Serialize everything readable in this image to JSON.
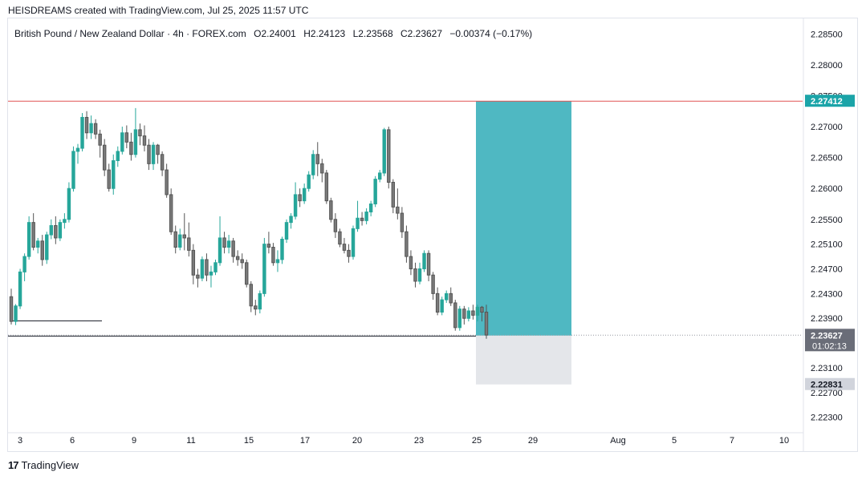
{
  "header": {
    "caption": "HEISDREAMS created with TradingView.com, Jul 25, 2025 11:57 UTC"
  },
  "legend": {
    "symbol": "British Pound / New Zealand Dollar · 4h · FOREX.com",
    "open": "O2.24001",
    "high": "H2.24123",
    "low": "L2.23568",
    "close": "C2.23627",
    "change": "−0.00374 (−0.17%)"
  },
  "footer": {
    "brand": "TradingView",
    "logo_glyph": "17"
  },
  "colors": {
    "up": "#26a69a",
    "down": "#555555",
    "target": "#4fb8c2",
    "stop": "#e4e6ea",
    "resistance": "#e05252",
    "badge_target": "#1ba4a8",
    "badge_price": "#6a6d78",
    "badge_stop": "#d1d4dc"
  },
  "chart_data": {
    "type": "candlestick",
    "y_ticks": [
      "2.28500",
      "2.28000",
      "2.27500",
      "2.27000",
      "2.26500",
      "2.26000",
      "2.25500",
      "2.25100",
      "2.24700",
      "2.24300",
      "2.23900",
      "2.23627",
      "2.23100",
      "2.22700",
      "2.22300"
    ],
    "x_ticks": [
      "3",
      "6",
      "9",
      "11",
      "15",
      "17",
      "20",
      "23",
      "25",
      "29",
      "Aug",
      "5",
      "7",
      "10"
    ],
    "ylim": [
      2.2205,
      2.2875
    ],
    "levels": {
      "resistance": 2.27412,
      "support": 2.2362,
      "early_low": 2.2386,
      "current": 2.23627
    },
    "position": {
      "target": 2.27412,
      "entry": 2.2362,
      "stop": 2.22831
    },
    "price_labels": {
      "target": "2.27412",
      "current": "2.23627",
      "countdown": "01:02:13",
      "stop": "2.22831"
    },
    "candles": [
      [
        2.2425,
        2.2438,
        2.238,
        2.2385
      ],
      [
        2.2385,
        2.2413,
        2.2379,
        2.241
      ],
      [
        2.241,
        2.247,
        2.2405,
        2.2465
      ],
      [
        2.2465,
        2.2495,
        2.245,
        2.249
      ],
      [
        2.249,
        2.2555,
        2.2485,
        2.2545
      ],
      [
        2.2545,
        2.256,
        2.25,
        2.2505
      ],
      [
        2.2505,
        2.252,
        2.2495,
        2.2515
      ],
      [
        2.2515,
        2.2525,
        2.2475,
        2.2485
      ],
      [
        2.2485,
        2.253,
        2.2478,
        2.2525
      ],
      [
        2.2525,
        2.255,
        2.2518,
        2.254
      ],
      [
        2.254,
        2.2555,
        2.251,
        2.252
      ],
      [
        2.252,
        2.255,
        2.2515,
        2.2545
      ],
      [
        2.2545,
        2.256,
        2.2535,
        2.255
      ],
      [
        2.255,
        2.261,
        2.2545,
        2.26
      ],
      [
        2.26,
        2.2668,
        2.2595,
        2.266
      ],
      [
        2.266,
        2.2672,
        2.264,
        2.2665
      ],
      [
        2.2665,
        2.2722,
        2.266,
        2.2715
      ],
      [
        2.2715,
        2.2725,
        2.268,
        2.269
      ],
      [
        2.269,
        2.2718,
        2.268,
        2.2705
      ],
      [
        2.2705,
        2.2712,
        2.268,
        2.2688
      ],
      [
        2.2688,
        2.2695,
        2.265,
        2.267
      ],
      [
        2.267,
        2.268,
        2.262,
        2.263
      ],
      [
        2.263,
        2.264,
        2.2595,
        2.26
      ],
      [
        2.26,
        2.2655,
        2.259,
        2.2645
      ],
      [
        2.2645,
        2.2668,
        2.2635,
        2.266
      ],
      [
        2.266,
        2.27,
        2.2655,
        2.269
      ],
      [
        2.269,
        2.2702,
        2.2665,
        2.2675
      ],
      [
        2.2675,
        2.269,
        2.2645,
        2.2655
      ],
      [
        2.2655,
        2.273,
        2.265,
        2.2695
      ],
      [
        2.2695,
        2.2705,
        2.267,
        2.2685
      ],
      [
        2.2685,
        2.2702,
        2.266,
        2.267
      ],
      [
        2.267,
        2.268,
        2.263,
        2.264
      ],
      [
        2.264,
        2.2675,
        2.263,
        2.267
      ],
      [
        2.267,
        2.2672,
        2.264,
        2.2655
      ],
      [
        2.2655,
        2.266,
        2.262,
        2.263
      ],
      [
        2.263,
        2.264,
        2.2585,
        2.259
      ],
      [
        2.259,
        2.26,
        2.2525,
        2.253
      ],
      [
        2.253,
        2.254,
        2.2495,
        2.2505
      ],
      [
        2.2505,
        2.2535,
        2.25,
        2.2525
      ],
      [
        2.2525,
        2.256,
        2.25,
        2.252
      ],
      [
        2.252,
        2.2545,
        2.249,
        2.25
      ],
      [
        2.25,
        2.251,
        2.2445,
        2.246
      ],
      [
        2.246,
        2.247,
        2.244,
        2.2455
      ],
      [
        2.2455,
        2.249,
        2.245,
        2.2485
      ],
      [
        2.2485,
        2.2495,
        2.245,
        2.246
      ],
      [
        2.246,
        2.2475,
        2.244,
        2.2465
      ],
      [
        2.2465,
        2.2485,
        2.246,
        2.248
      ],
      [
        2.248,
        2.2555,
        2.2475,
        2.252
      ],
      [
        2.252,
        2.253,
        2.2495,
        2.2505
      ],
      [
        2.2505,
        2.2525,
        2.2495,
        2.2515
      ],
      [
        2.2515,
        2.252,
        2.248,
        2.249
      ],
      [
        2.249,
        2.25,
        2.2475,
        2.2485
      ],
      [
        2.2485,
        2.2495,
        2.247,
        2.248
      ],
      [
        2.248,
        2.2485,
        2.244,
        2.2445
      ],
      [
        2.2445,
        2.245,
        2.24,
        2.241
      ],
      [
        2.241,
        2.242,
        2.2395,
        2.2405
      ],
      [
        2.2405,
        2.2435,
        2.2398,
        2.243
      ],
      [
        2.243,
        2.252,
        2.2425,
        2.251
      ],
      [
        2.251,
        2.253,
        2.2495,
        2.2505
      ],
      [
        2.2505,
        2.2512,
        2.2475,
        2.248
      ],
      [
        2.248,
        2.25,
        2.2465,
        2.2485
      ],
      [
        2.2485,
        2.2522,
        2.2478,
        2.2518
      ],
      [
        2.2518,
        2.255,
        2.2512,
        2.2545
      ],
      [
        2.2545,
        2.256,
        2.2535,
        2.2555
      ],
      [
        2.2555,
        2.261,
        2.255,
        2.259
      ],
      [
        2.259,
        2.26,
        2.257,
        2.258
      ],
      [
        2.258,
        2.2608,
        2.2575,
        2.26
      ],
      [
        2.26,
        2.2628,
        2.2595,
        2.2622
      ],
      [
        2.2622,
        2.2662,
        2.2615,
        2.2655
      ],
      [
        2.2655,
        2.2675,
        2.262,
        2.264
      ],
      [
        2.264,
        2.2648,
        2.261,
        2.2625
      ],
      [
        2.2625,
        2.263,
        2.2575,
        2.258
      ],
      [
        2.258,
        2.2585,
        2.2545,
        2.255
      ],
      [
        2.255,
        2.256,
        2.252,
        2.253
      ],
      [
        2.253,
        2.2535,
        2.2505,
        2.251
      ],
      [
        2.251,
        2.252,
        2.2495,
        2.25
      ],
      [
        2.25,
        2.251,
        2.248,
        2.249
      ],
      [
        2.249,
        2.254,
        2.2485,
        2.2535
      ],
      [
        2.2535,
        2.258,
        2.253,
        2.2552
      ],
      [
        2.2552,
        2.2562,
        2.254,
        2.2548
      ],
      [
        2.2548,
        2.2568,
        2.2542,
        2.2562
      ],
      [
        2.2562,
        2.258,
        2.2555,
        2.2575
      ],
      [
        2.2575,
        2.262,
        2.257,
        2.2615
      ],
      [
        2.2615,
        2.263,
        2.261,
        2.2625
      ],
      [
        2.2625,
        2.2698,
        2.262,
        2.2695
      ],
      [
        2.2695,
        2.27,
        2.26,
        2.261
      ],
      [
        2.261,
        2.2615,
        2.256,
        2.257
      ],
      [
        2.257,
        2.26,
        2.255,
        2.256
      ],
      [
        2.256,
        2.257,
        2.252,
        2.253
      ],
      [
        2.253,
        2.254,
        2.248,
        2.249
      ],
      [
        2.249,
        2.25,
        2.246,
        2.247
      ],
      [
        2.247,
        2.248,
        2.244,
        2.245
      ],
      [
        2.245,
        2.248,
        2.2445,
        2.247
      ],
      [
        2.247,
        2.25,
        2.2465,
        2.2495
      ],
      [
        2.2495,
        2.25,
        2.245,
        2.246
      ],
      [
        2.246,
        2.2465,
        2.242,
        2.243
      ],
      [
        2.243,
        2.244,
        2.2395,
        2.24
      ],
      [
        2.24,
        2.2425,
        2.2395,
        2.242
      ],
      [
        2.242,
        2.2435,
        2.2415,
        2.243
      ],
      [
        2.243,
        2.244,
        2.241,
        2.2415
      ],
      [
        2.2415,
        2.242,
        2.237,
        2.2375
      ],
      [
        2.2375,
        2.241,
        2.237,
        2.2405
      ],
      [
        2.2405,
        2.241,
        2.238,
        2.239
      ],
      [
        2.239,
        2.2408,
        2.2385,
        2.2402
      ],
      [
        2.2402,
        2.2412,
        2.2388,
        2.2395
      ],
      [
        2.2395,
        2.2412,
        2.2385,
        2.2408
      ],
      [
        2.2408,
        2.241,
        2.2385,
        2.24
      ],
      [
        2.24,
        2.2412,
        2.2357,
        2.2363
      ]
    ]
  }
}
